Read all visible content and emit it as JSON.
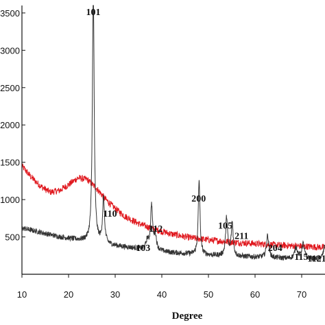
{
  "chart_data": {
    "type": "line",
    "title": "",
    "xlabel": "Degree",
    "ylabel": "",
    "xlim": [
      10,
      75
    ],
    "ylim": [
      0,
      3600
    ],
    "x_ticks": [
      10,
      20,
      30,
      40,
      50,
      60,
      70
    ],
    "y_ticks": [
      500,
      1000,
      1500,
      2000,
      2500,
      3000,
      3500
    ],
    "y_tick_labels": [
      "500",
      "1000",
      "1500",
      "2000",
      "2500",
      "3000",
      "3500"
    ],
    "grid": false,
    "legend": "none",
    "series": [
      {
        "color": "#333333",
        "baseline": [
          [
            10,
            620
          ],
          [
            14,
            560
          ],
          [
            18,
            500
          ],
          [
            22,
            460
          ],
          [
            26,
            420
          ],
          [
            30,
            380
          ],
          [
            34,
            350
          ],
          [
            38,
            320
          ],
          [
            42,
            290
          ],
          [
            46,
            270
          ],
          [
            50,
            255
          ],
          [
            55,
            240
          ],
          [
            60,
            230
          ],
          [
            65,
            215
          ],
          [
            70,
            205
          ],
          [
            75,
            200
          ]
        ],
        "peaks": [
          [
            25.3,
            3500,
            0.22
          ],
          [
            27.5,
            600,
            0.25
          ],
          [
            36.9,
            120,
            0.3
          ],
          [
            37.8,
            600,
            0.25
          ],
          [
            38.6,
            200,
            0.3
          ],
          [
            48.0,
            1000,
            0.22
          ],
          [
            53.9,
            520,
            0.25
          ],
          [
            55.1,
            450,
            0.25
          ],
          [
            62.7,
            300,
            0.3
          ],
          [
            68.8,
            150,
            0.35
          ],
          [
            70.3,
            200,
            0.35
          ],
          [
            75.0,
            200,
            0.35
          ]
        ]
      },
      {
        "color": "#e0191f",
        "points": [
          [
            10,
            1450
          ],
          [
            12,
            1300
          ],
          [
            14,
            1180
          ],
          [
            16,
            1100
          ],
          [
            18,
            1120
          ],
          [
            20,
            1200
          ],
          [
            22,
            1290
          ],
          [
            24,
            1270
          ],
          [
            26,
            1150
          ],
          [
            28,
            1000
          ],
          [
            30,
            880
          ],
          [
            32,
            780
          ],
          [
            35,
            680
          ],
          [
            38,
            610
          ],
          [
            42,
            540
          ],
          [
            46,
            490
          ],
          [
            50,
            460
          ],
          [
            55,
            430
          ],
          [
            60,
            410
          ],
          [
            65,
            390
          ],
          [
            70,
            375
          ],
          [
            75,
            360
          ]
        ]
      }
    ],
    "annotations": [
      {
        "text": "101",
        "x": 25.3,
        "y": 3600
      },
      {
        "text": "110",
        "x": 28.9,
        "y": 900
      },
      {
        "text": "103",
        "x": 36.0,
        "y": 440
      },
      {
        "text": "112",
        "x": 38.7,
        "y": 700
      },
      {
        "text": "200",
        "x": 47.9,
        "y": 1100
      },
      {
        "text": "105",
        "x": 53.6,
        "y": 740
      },
      {
        "text": "211",
        "x": 57.1,
        "y": 600
      },
      {
        "text": "204",
        "x": 64.3,
        "y": 440
      },
      {
        "text": "115",
        "x": 69.9,
        "y": 320
      },
      {
        "text": "1121",
        "x": 73.8,
        "y": 300
      }
    ]
  }
}
